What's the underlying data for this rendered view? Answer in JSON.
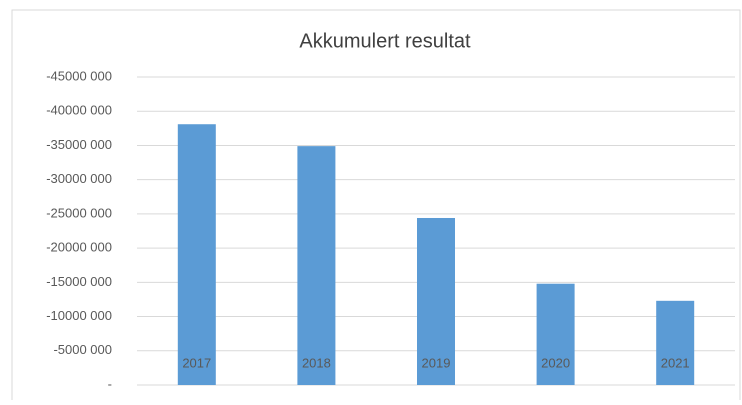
{
  "chart_data": {
    "type": "bar",
    "title": "Akkumulert resultat",
    "categories": [
      "2017",
      "2018",
      "2019",
      "2020",
      "2021"
    ],
    "values": [
      -38100000,
      -34900000,
      -24400000,
      -14800000,
      -12300000
    ],
    "color": "#5b9bd5",
    "ylim": [
      0,
      -45000000
    ],
    "yticks": [
      {
        "value": 0,
        "label": "-"
      },
      {
        "value": -5000000,
        "label": "-5000 000"
      },
      {
        "value": -10000000,
        "label": "-10000 000"
      },
      {
        "value": -15000000,
        "label": "-15000 000"
      },
      {
        "value": -20000000,
        "label": "-20000 000"
      },
      {
        "value": -25000000,
        "label": "-25000 000"
      },
      {
        "value": -30000000,
        "label": "-30000 000"
      },
      {
        "value": -35000000,
        "label": "-35000 000"
      },
      {
        "value": -40000000,
        "label": "-40000 000"
      },
      {
        "value": -45000000,
        "label": "-45000 000"
      }
    ],
    "grid": true
  }
}
